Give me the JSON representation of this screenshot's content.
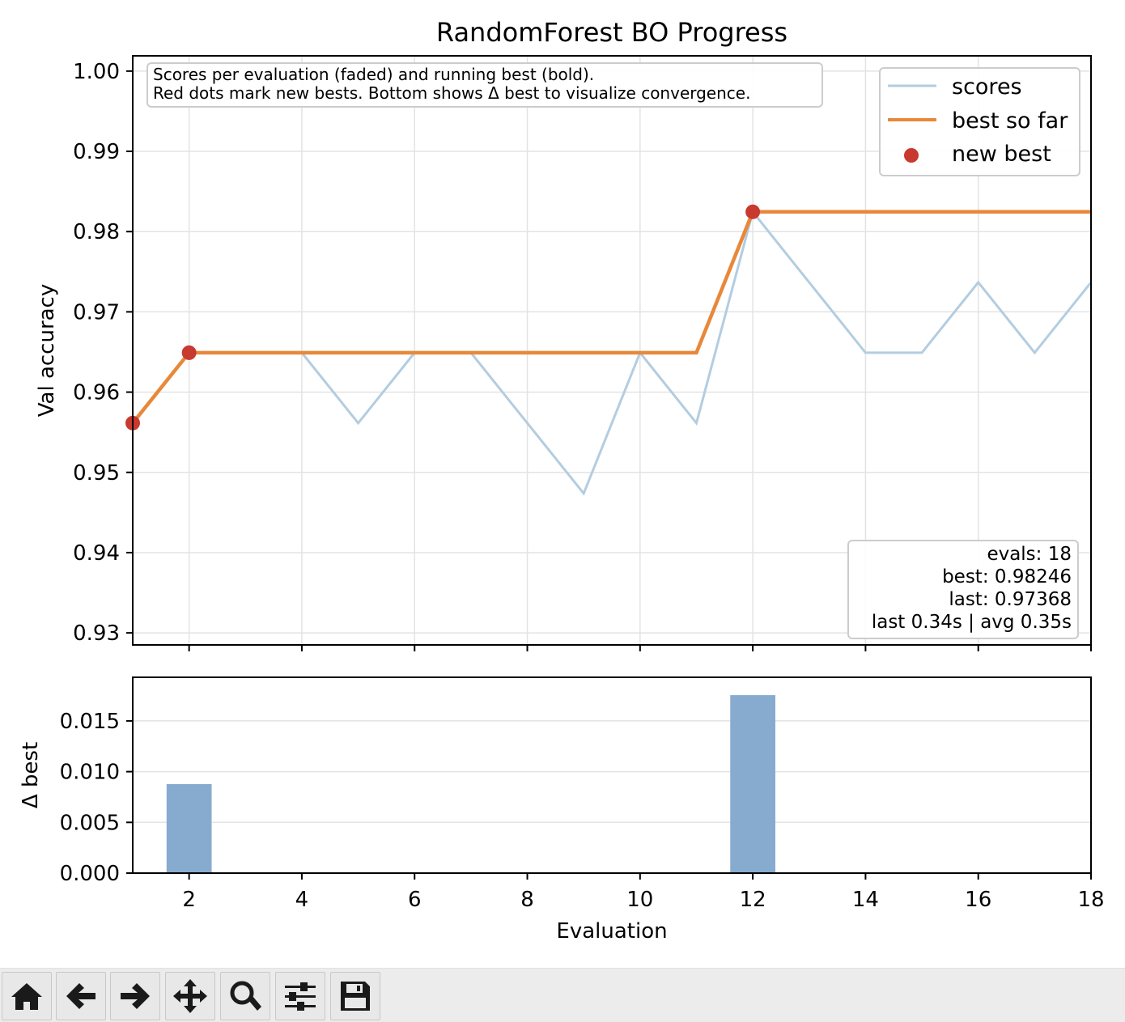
{
  "chart_data": [
    {
      "type": "line",
      "title": "RandomForest BO Progress",
      "xlabel": "",
      "ylabel": "Val accuracy",
      "xlim": [
        1,
        18
      ],
      "ylim": [
        0.9285,
        1.0019
      ],
      "x": [
        1,
        2,
        3,
        4,
        5,
        6,
        7,
        8,
        9,
        10,
        11,
        12,
        13,
        14,
        15,
        16,
        17,
        18
      ],
      "yticks": [
        "0.93",
        "0.94",
        "0.95",
        "0.96",
        "0.97",
        "0.98",
        "0.99",
        "1.00"
      ],
      "ytick_values": [
        0.93,
        0.94,
        0.95,
        0.96,
        0.97,
        0.98,
        0.99,
        1.0
      ],
      "xtick_values": [
        2,
        4,
        6,
        8,
        10,
        12,
        14,
        16,
        18
      ],
      "grid": true,
      "series": [
        {
          "name": "scores",
          "color": "#b3cde0",
          "values": [
            0.95614,
            0.96491,
            0.96491,
            0.96491,
            0.95614,
            0.96491,
            0.96491,
            0.95614,
            0.94737,
            0.96491,
            0.95614,
            0.98246,
            0.97368,
            0.96491,
            0.96491,
            0.97368,
            0.96491,
            0.97368
          ]
        },
        {
          "name": "best so far",
          "color": "#e8883a",
          "values": [
            0.95614,
            0.96491,
            0.96491,
            0.96491,
            0.96491,
            0.96491,
            0.96491,
            0.96491,
            0.96491,
            0.96491,
            0.96491,
            0.98246,
            0.98246,
            0.98246,
            0.98246,
            0.98246,
            0.98246,
            0.98246
          ]
        },
        {
          "name": "new best",
          "type": "scatter",
          "color": "#c8392f",
          "x": [
            1,
            2,
            12
          ],
          "values": [
            0.95614,
            0.96491,
            0.98246
          ]
        }
      ],
      "legend_position": "top-right",
      "note_lines": [
        "Scores per evaluation (faded) and running best (bold).",
        "Red dots mark new bests. Bottom shows Δ best to visualize convergence."
      ],
      "stats_lines": [
        "evals: 18",
        "best: 0.98246",
        "last: 0.97368",
        "last 0.34s | avg 0.35s"
      ]
    },
    {
      "type": "bar",
      "title": "",
      "xlabel": "Evaluation",
      "ylabel": "Δ best",
      "xlim": [
        1,
        18
      ],
      "ylim": [
        0,
        0.0193
      ],
      "x": [
        2,
        12
      ],
      "values": [
        0.00877,
        0.01754
      ],
      "color": "#86abcf",
      "yticks": [
        "0.000",
        "0.005",
        "0.010",
        "0.015"
      ],
      "ytick_values": [
        0,
        0.005,
        0.01,
        0.015
      ],
      "xticks": [
        "2",
        "4",
        "6",
        "8",
        "10",
        "12",
        "14",
        "16",
        "18"
      ],
      "xtick_values": [
        2,
        4,
        6,
        8,
        10,
        12,
        14,
        16,
        18
      ],
      "grid": true
    }
  ],
  "toolbar": {
    "buttons": [
      {
        "name": "home-button",
        "icon": "home-icon"
      },
      {
        "name": "back-button",
        "icon": "arrow-left-icon"
      },
      {
        "name": "forward-button",
        "icon": "arrow-right-icon"
      },
      {
        "name": "pan-button",
        "icon": "move-icon"
      },
      {
        "name": "zoom-button",
        "icon": "magnifier-icon"
      },
      {
        "name": "configure-subplots-button",
        "icon": "sliders-icon"
      },
      {
        "name": "save-button",
        "icon": "floppy-disk-icon"
      }
    ]
  }
}
